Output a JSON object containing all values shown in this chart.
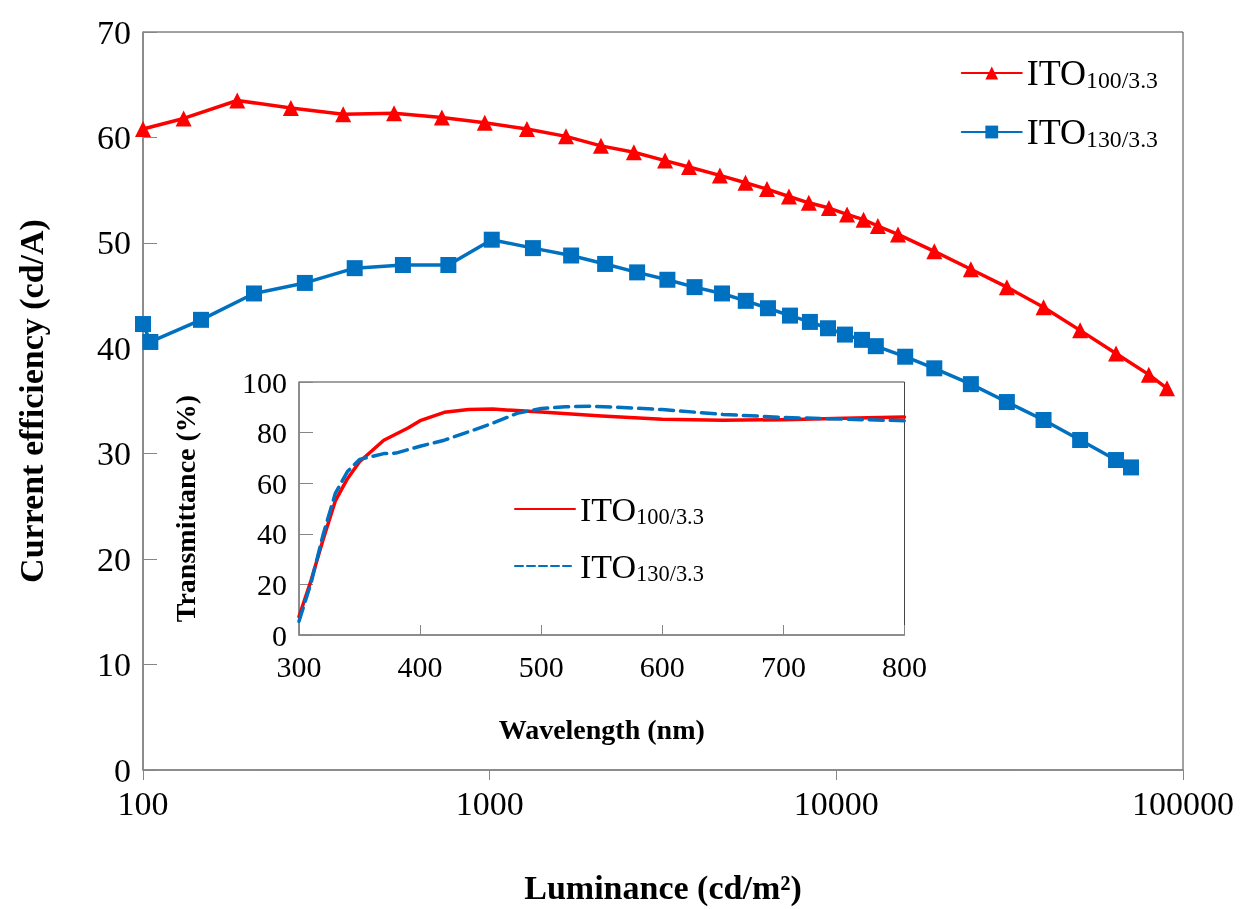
{
  "chart_data": [
    {
      "type": "line",
      "xlabel": "Luminance (cd/m²)",
      "ylabel": "Current efficiency (cd/A)",
      "log": "x",
      "xlim": [
        100,
        100000
      ],
      "xticks": [
        100,
        1000,
        10000,
        100000
      ],
      "ylim": [
        0,
        70
      ],
      "yticks": [
        0,
        10,
        20,
        30,
        40,
        50,
        60,
        70
      ],
      "grid": false,
      "legend": "top right",
      "series": [
        {
          "name": "ITO$_{100/3.3}$",
          "color": "#ff0000",
          "marker": "triangle",
          "x": [
            100,
            131,
            187,
            267,
            378,
            530,
            728,
            968,
            1281,
            1660,
            2094,
            2606,
            3206,
            3758,
            4613,
            5470,
            6310,
            7300,
            8330,
            9520,
            10740,
            11980,
            13180,
            15060,
            19170,
            24440,
            31040,
            39600,
            50500,
            64100,
            79700,
            89900
          ],
          "values": [
            60.8,
            61.8,
            63.5,
            62.8,
            62.2,
            62.3,
            61.9,
            61.4,
            60.8,
            60.1,
            59.2,
            58.6,
            57.8,
            57.2,
            56.4,
            55.7,
            55.1,
            54.4,
            53.8,
            53.3,
            52.7,
            52.2,
            51.6,
            50.8,
            49.2,
            47.5,
            45.8,
            43.9,
            41.7,
            39.5,
            37.5,
            36.2
          ]
        },
        {
          "name": "ITO$_{130/3.3}$",
          "color": "#0070c0",
          "marker": "square",
          "x": [
            100,
            105,
            147,
            209,
            293,
            408,
            562,
            760,
            1014,
            1333,
            1718,
            2153,
            2663,
            3256,
            3900,
            4680,
            5480,
            6350,
            7350,
            8390,
            9460,
            10590,
            11860,
            13000,
            15800,
            19170,
            24440,
            31040,
            39600,
            50500,
            64100,
            70800
          ],
          "values": [
            42.3,
            40.6,
            42.7,
            45.2,
            46.2,
            47.6,
            47.9,
            47.9,
            50.3,
            49.5,
            48.8,
            48.0,
            47.2,
            46.5,
            45.8,
            45.2,
            44.5,
            43.8,
            43.1,
            42.5,
            41.9,
            41.3,
            40.8,
            40.2,
            39.2,
            38.1,
            36.6,
            34.9,
            33.2,
            31.3,
            29.4,
            28.7
          ]
        }
      ]
    },
    {
      "type": "line",
      "xlabel": "Wavelength (nm)",
      "ylabel": "Transmittance (%)",
      "xlim": [
        300,
        800
      ],
      "xticks": [
        300,
        400,
        500,
        600,
        700,
        800
      ],
      "ylim": [
        0,
        100
      ],
      "yticks": [
        0,
        20,
        40,
        60,
        80,
        100
      ],
      "grid": false,
      "legend": "center",
      "series": [
        {
          "name": "ITO$_{100/3.3}$",
          "color": "#ff0000",
          "line_style": "solid",
          "x": [
            300,
            310,
            320,
            330,
            340,
            350,
            370,
            390,
            400,
            420,
            440,
            460,
            480,
            500,
            550,
            600,
            650,
            700,
            750,
            800
          ],
          "values": [
            7.3,
            21.6,
            37.8,
            53,
            61.8,
            68.5,
            77,
            81.8,
            84.7,
            88,
            89.1,
            89.3,
            88.7,
            88.1,
            86.6,
            85.3,
            84.9,
            85.1,
            85.7,
            86.2
          ]
        },
        {
          "name": "ITO$_{130/3.3}$",
          "color": "#0070c0",
          "line_style": "dashed",
          "x": [
            300,
            310,
            320,
            330,
            340,
            350,
            370,
            380,
            400,
            420,
            440,
            460,
            480,
            500,
            520,
            540,
            560,
            600,
            650,
            700,
            750,
            800
          ],
          "values": [
            5.4,
            20.7,
            39.8,
            56,
            64.6,
            69.4,
            71.7,
            71.9,
            74.6,
            77,
            80.3,
            83.7,
            87.6,
            89.5,
            90.2,
            90.4,
            90.1,
            89.1,
            87.2,
            86.0,
            85.3,
            84.7
          ]
        }
      ]
    }
  ]
}
